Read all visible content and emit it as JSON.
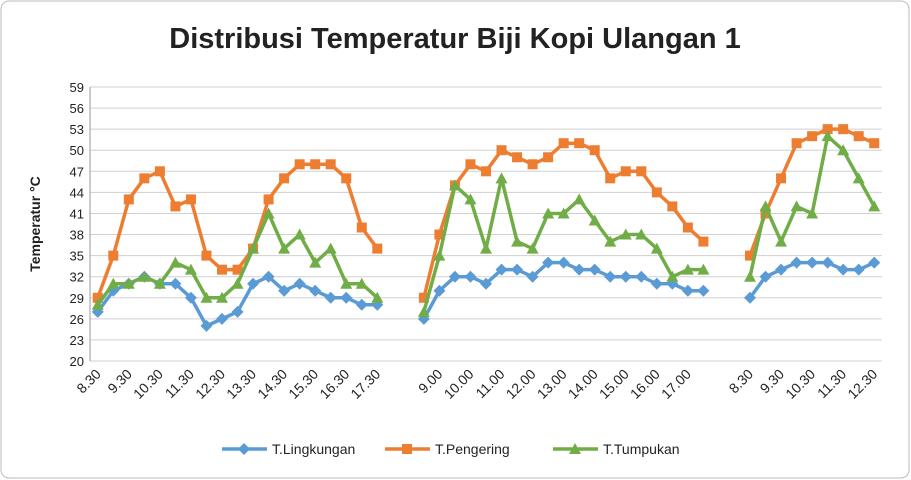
{
  "chart_data": {
    "type": "line",
    "title": "Distribusi Temperatur Biji Kopi Ulangan 1",
    "y_label": "Temperatur °C",
    "categories": [
      "8.30",
      null,
      "9.30",
      null,
      "10.30",
      null,
      "11.30",
      null,
      "12.30",
      null,
      "13.30",
      null,
      "14.30",
      null,
      "15.30",
      null,
      "16.30",
      null,
      "17.30",
      null,
      null,
      null,
      "9.00",
      null,
      "10.00",
      null,
      "11.00",
      null,
      "12.00",
      null,
      "13.00",
      null,
      "14.00",
      null,
      "15.00",
      null,
      "16.00",
      null,
      "17.00",
      null,
      null,
      null,
      "8.30",
      null,
      "9.30",
      null,
      "10.30",
      null,
      "11.30",
      null,
      "12.30"
    ],
    "series": [
      {
        "name": "T.Lingkungan",
        "color": "#5b9bd5",
        "marker": "diamond",
        "values": [
          27,
          30,
          31,
          32,
          31,
          31,
          29,
          25,
          26,
          27,
          31,
          32,
          30,
          31,
          30,
          29,
          29,
          28,
          28,
          null,
          null,
          26,
          30,
          32,
          32,
          31,
          33,
          33,
          32,
          34,
          34,
          33,
          33,
          32,
          32,
          32,
          31,
          31,
          30,
          30,
          null,
          null,
          29,
          32,
          33,
          34,
          34,
          34,
          33,
          33,
          34
        ]
      },
      {
        "name": "T.Pengering",
        "color": "#ed7d31",
        "marker": "square",
        "values": [
          29,
          35,
          43,
          46,
          47,
          42,
          43,
          35,
          33,
          33,
          36,
          43,
          46,
          48,
          48,
          48,
          46,
          39,
          36,
          null,
          null,
          29,
          38,
          45,
          48,
          47,
          50,
          49,
          48,
          49,
          51,
          51,
          50,
          46,
          47,
          47,
          44,
          42,
          39,
          37,
          null,
          null,
          35,
          41,
          46,
          51,
          52,
          53,
          53,
          52,
          51
        ]
      },
      {
        "name": "T.Tumpukan",
        "color": "#70ad47",
        "marker": "triangle",
        "values": [
          28,
          31,
          31,
          32,
          31,
          34,
          33,
          29,
          29,
          31,
          36,
          41,
          36,
          38,
          34,
          36,
          31,
          31,
          29,
          null,
          null,
          27,
          35,
          45,
          43,
          36,
          46,
          37,
          36,
          41,
          41,
          43,
          40,
          37,
          38,
          38,
          36,
          32,
          33,
          33,
          null,
          null,
          32,
          42,
          37,
          42,
          41,
          52,
          50,
          46,
          42
        ]
      }
    ],
    "ylim": [
      20,
      59
    ],
    "yticks": [
      20,
      23,
      26,
      29,
      32,
      35,
      38,
      41,
      44,
      47,
      50,
      53,
      56,
      59
    ],
    "grid": true,
    "legend": "bottom"
  }
}
